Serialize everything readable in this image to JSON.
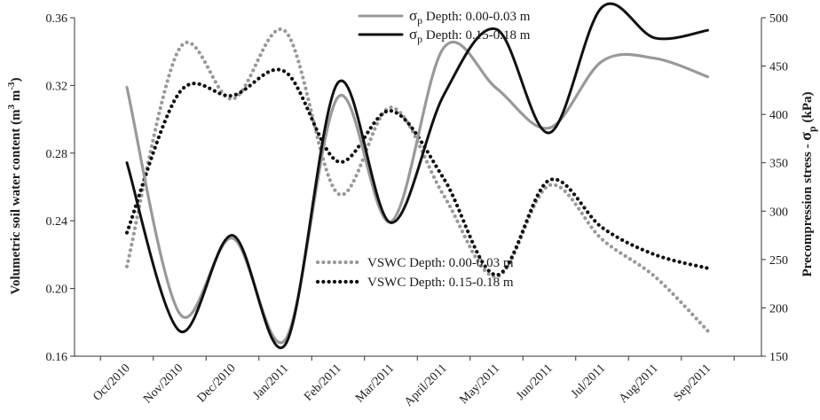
{
  "chart_data": {
    "type": "line",
    "categories": [
      "Oct/2010",
      "Nov/2010",
      "Dec/2010",
      "Jan/2011",
      "Feb/2011",
      "Mar/2011",
      "April/2011",
      "May/2011",
      "Jun/2011",
      "Jul/2011",
      "Aug/2011",
      "Sep/2011"
    ],
    "ylabel_left": {
      "main": "Volumetric soil water content (m",
      "sup1": "3",
      "mid": " m",
      "sup2": "-3",
      "end": ")"
    },
    "ylabel_right": {
      "main": "Precompression stress - ",
      "sym": "σ",
      "sub": "p",
      "end": " (kPa)"
    },
    "ylim_left": [
      0.16,
      0.36
    ],
    "yticks_left": [
      "0.16",
      "0.20",
      "0.24",
      "0.28",
      "0.32",
      "0.36"
    ],
    "ylim_right": [
      150,
      500
    ],
    "yticks_right": [
      "150",
      "200",
      "250",
      "300",
      "350",
      "400",
      "450",
      "500"
    ],
    "series": [
      {
        "name": {
          "sym": "σ",
          "sub": "p",
          "rest": " Depth: 0.00-0.03 m"
        },
        "axis": "right",
        "style": "solid",
        "color": "#999999",
        "values": [
          428,
          194,
          272,
          167,
          418,
          289,
          469,
          427,
          386,
          455,
          458,
          439
        ]
      },
      {
        "name": {
          "sym": "σ",
          "sub": "p",
          "rest": " Depth: 0.15-0.18 m"
        },
        "axis": "right",
        "style": "solid",
        "color": "#111111",
        "values": [
          350,
          176,
          275,
          162,
          433,
          288,
          420,
          488,
          381,
          511,
          479,
          487
        ]
      },
      {
        "name": {
          "text": "VSWC Depth: 0.00-0.03 m"
        },
        "axis": "left",
        "style": "dotted",
        "color": "#999999",
        "values": [
          0.213,
          0.342,
          0.312,
          0.352,
          0.256,
          0.307,
          0.255,
          0.207,
          0.261,
          0.229,
          0.207,
          0.175
        ]
      },
      {
        "name": {
          "text": "VSWC Depth: 0.15-0.18 m"
        },
        "axis": "left",
        "style": "dotted",
        "color": "#111111",
        "values": [
          0.233,
          0.316,
          0.314,
          0.328,
          0.275,
          0.305,
          0.265,
          0.208,
          0.264,
          0.236,
          0.22,
          0.212
        ]
      }
    ]
  }
}
